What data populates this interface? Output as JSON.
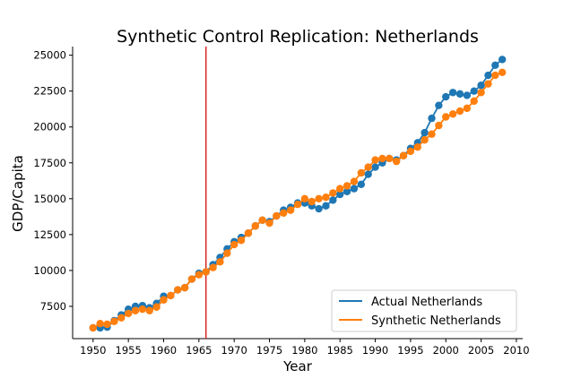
{
  "chart_data": {
    "type": "line",
    "title": "Synthetic Control Replication: Netherlands",
    "xlabel": "Year",
    "ylabel": "GDP/Capita",
    "xlim": [
      1947.1,
      2010.9
    ],
    "ylim": [
      5250,
      25600
    ],
    "x_ticks": [
      1950,
      1955,
      1960,
      1965,
      1970,
      1975,
      1980,
      1985,
      1990,
      1995,
      2000,
      2005,
      2010
    ],
    "y_ticks": [
      7500,
      10000,
      12500,
      15000,
      17500,
      20000,
      22500,
      25000
    ],
    "grid": false,
    "legend_position": "lower-right",
    "vertical_line": {
      "x": 1966,
      "color": "#d62728"
    },
    "x": [
      1950,
      1951,
      1952,
      1953,
      1954,
      1955,
      1956,
      1957,
      1958,
      1959,
      1960,
      1961,
      1962,
      1963,
      1964,
      1965,
      1966,
      1967,
      1968,
      1969,
      1970,
      1971,
      1972,
      1973,
      1974,
      1975,
      1976,
      1977,
      1978,
      1979,
      1980,
      1981,
      1982,
      1983,
      1984,
      1985,
      1986,
      1987,
      1988,
      1989,
      1990,
      1991,
      1992,
      1993,
      1994,
      1995,
      1996,
      1997,
      1998,
      1999,
      2000,
      2001,
      2002,
      2003,
      2004,
      2005,
      2006,
      2007,
      2008
    ],
    "series": [
      {
        "name": "Actual Netherlands",
        "color": "#1f77b4",
        "values": [
          6000,
          6000,
          6050,
          6500,
          6900,
          7300,
          7500,
          7550,
          7400,
          7700,
          8200,
          8250,
          8650,
          8800,
          9400,
          9800,
          9900,
          10400,
          10900,
          11500,
          12000,
          12300,
          12600,
          13100,
          13500,
          13400,
          13800,
          14200,
          14400,
          14700,
          14700,
          14500,
          14300,
          14500,
          14900,
          15300,
          15500,
          15700,
          16000,
          16700,
          17200,
          17500,
          17800,
          17700,
          18000,
          18500,
          18900,
          19600,
          20600,
          21500,
          22100,
          22400,
          22300,
          22200,
          22500,
          22900,
          23600,
          24300,
          24700
        ]
      },
      {
        "name": "Synthetic Netherlands",
        "color": "#ff7f0e",
        "values": [
          6000,
          6300,
          6250,
          6450,
          6700,
          7000,
          7200,
          7300,
          7200,
          7450,
          7950,
          8250,
          8650,
          8800,
          9400,
          9700,
          9900,
          10200,
          10600,
          11200,
          11800,
          12100,
          12600,
          13100,
          13500,
          13300,
          13800,
          14000,
          14200,
          14600,
          15000,
          14800,
          15000,
          15100,
          15400,
          15700,
          15900,
          16200,
          16800,
          17200,
          17700,
          17800,
          17800,
          17600,
          18000,
          18300,
          18600,
          19100,
          19500,
          20100,
          20700,
          20900,
          21100,
          21300,
          21800,
          22400,
          23000,
          23600,
          23800
        ]
      }
    ]
  }
}
